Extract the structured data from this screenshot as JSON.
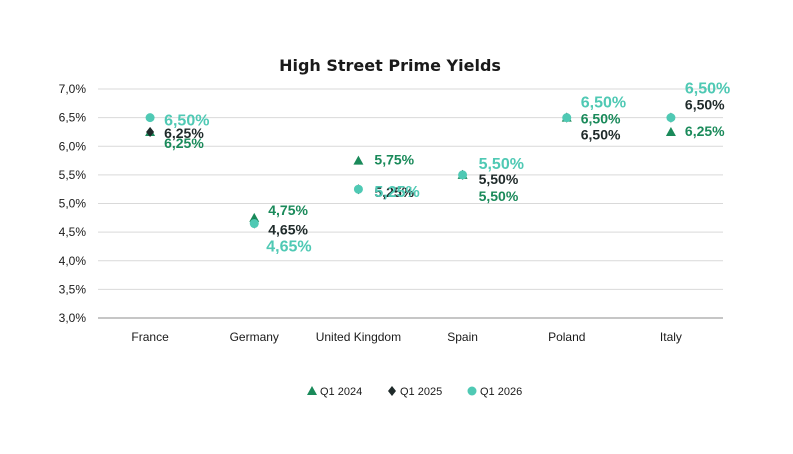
{
  "chart_data": {
    "type": "scatter",
    "title": "High Street Prime Yields",
    "xlabel": "",
    "ylabel": "",
    "categories": [
      "France",
      "Germany",
      "United Kingdom",
      "Spain",
      "Poland",
      "Italy"
    ],
    "ylim": [
      3.0,
      7.0
    ],
    "yticks": [
      "3,0%",
      "3,5%",
      "4,0%",
      "4,5%",
      "5,0%",
      "5,5%",
      "6,0%",
      "6,5%",
      "7,0%"
    ],
    "grid": true,
    "legend_position": "bottom",
    "series": [
      {
        "name": "Q1 2024",
        "marker": "triangle",
        "color": "#1a8a5a",
        "values": [
          6.25,
          4.75,
          5.75,
          5.5,
          6.5,
          6.25
        ],
        "labels": [
          "6,25%",
          "4,75%",
          "5,75%",
          "5,50%",
          "6,50%",
          "6,25%"
        ]
      },
      {
        "name": "Q1 2025",
        "marker": "diamond",
        "color": "#1f2a2a",
        "values": [
          6.25,
          4.65,
          5.25,
          5.5,
          6.5,
          6.5
        ],
        "labels": [
          "6,25%",
          "4,65%",
          "5,25%",
          "5,50%",
          "6,50%",
          "6,50%"
        ]
      },
      {
        "name": "Q1 2026",
        "marker": "circle",
        "color": "#4fc9b4",
        "values": [
          6.5,
          4.65,
          5.25,
          5.5,
          6.5,
          6.5
        ],
        "labels": [
          "6,50%",
          "4,65%",
          "5,25%",
          "5,50%",
          "6,50%",
          "6,50%"
        ]
      }
    ]
  }
}
